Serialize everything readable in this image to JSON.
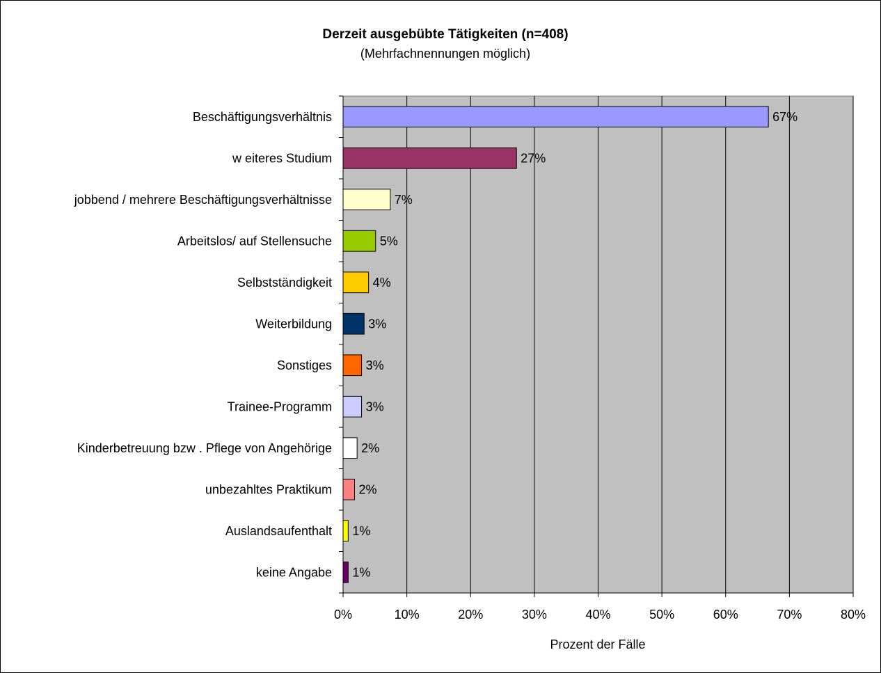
{
  "chart_data": {
    "type": "bar",
    "orientation": "horizontal",
    "title": "Derzeit ausgebübte Tätigkeiten (n=408)",
    "subtitle": "(Mehrfachnennungen möglich)",
    "xlabel": "Prozent der Fälle",
    "ylabel": "",
    "xlim": [
      0,
      80
    ],
    "x_ticks": [
      "0%",
      "10%",
      "20%",
      "30%",
      "40%",
      "50%",
      "60%",
      "70%",
      "80%"
    ],
    "grid": true,
    "plot_background": "#c0c0c0",
    "categories": [
      "Beschäftigungsverhältnis",
      "w eiteres Studium",
      "jobbend / mehrere Beschäftigungsverhältnisse",
      "Arbeitslos/ auf Stellensuche",
      "Selbstständigkeit",
      "Weiterbildung",
      "Sonstiges",
      "Trainee-Programm",
      "Kinderbetreuung bzw . Pflege von Angehörige",
      "unbezahltes Praktikum",
      "Auslandsaufenthalt",
      "keine Angabe"
    ],
    "values": [
      66.7,
      27.2,
      7.4,
      5.1,
      4.0,
      3.3,
      2.9,
      2.9,
      2.2,
      1.8,
      0.8,
      0.8
    ],
    "labels": [
      "67%",
      "27%",
      "7%",
      "5%",
      "4%",
      "3%",
      "3%",
      "3%",
      "2%",
      "2%",
      "1%",
      "1%"
    ],
    "colors": [
      "#9999ff",
      "#993366",
      "#ffffcc",
      "#99cc00",
      "#ffcc00",
      "#003366",
      "#ff6600",
      "#ccccff",
      "#ffffff",
      "#ff8080",
      "#ffff00",
      "#660066"
    ]
  }
}
